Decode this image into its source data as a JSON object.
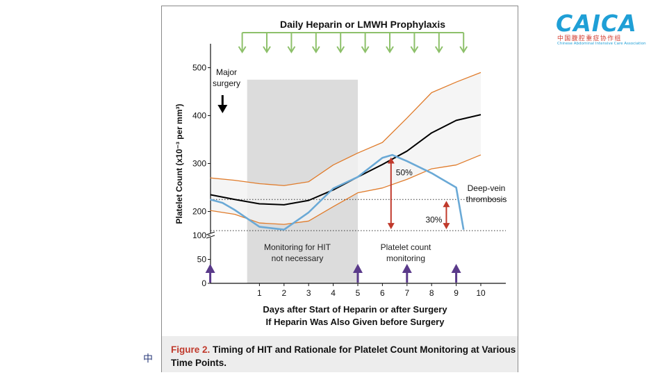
{
  "logo": {
    "text": "CAICA",
    "chinese": "中国腹腔重症协作组",
    "english": "Chinese Abdominal Intensive Care Association"
  },
  "side_glyph": "中",
  "caption": {
    "figure_label": "Figure 2.",
    "text": " Timing of HIT and Rationale for Platelet Count Monitoring at Various Time Points."
  },
  "chart_data": {
    "type": "line",
    "title": "Daily Heparin or LMWH Prophylaxis",
    "xlabel": "Days after Start of Heparin or after Surgery",
    "xlabel_line2": "If Heparin Was Also Given before Surgery",
    "ylabel": "Platelet Count (x10⁻³ per mm³)",
    "xlim": [
      -1.5,
      10.9
    ],
    "ylim": [
      0,
      500
    ],
    "y_axis_break": [
      100,
      150
    ],
    "x_ticks": [
      1,
      2,
      3,
      4,
      5,
      6,
      7,
      8,
      9,
      10
    ],
    "y_ticks": [
      0,
      50,
      100,
      200,
      300,
      400,
      500
    ],
    "shaded_region": {
      "x_start": 0.5,
      "x_end": 5,
      "y_top": 475,
      "color": "#dcdcdc"
    },
    "reference_lines": [
      {
        "y": 225,
        "style": "dotted"
      },
      {
        "y": 160,
        "style": "dotted"
      }
    ],
    "series": [
      {
        "name": "",
        "color": "#000000",
        "x": [
          -1,
          0,
          1,
          2,
          3,
          4,
          5,
          6,
          7,
          8,
          9,
          10
        ],
        "y": [
          235,
          225,
          216,
          214,
          223,
          245,
          272,
          298,
          326,
          364,
          390,
          402
        ]
      },
      {
        "name": "",
        "color": "#e07b2a",
        "x": [
          -1,
          0,
          1,
          2,
          3,
          4,
          5,
          6,
          7,
          8,
          9,
          10
        ],
        "y": [
          270,
          265,
          258,
          254,
          262,
          297,
          322,
          344,
          395,
          448,
          470,
          490
        ]
      },
      {
        "name": "",
        "color": "#e07b2a",
        "x": [
          -1,
          0,
          1,
          2,
          3,
          4,
          5,
          6,
          7,
          8,
          9,
          10
        ],
        "y": [
          202,
          194,
          176,
          173,
          180,
          210,
          239,
          249,
          267,
          289,
          297,
          318
        ]
      },
      {
        "name": "",
        "color": "#6aa9d6",
        "x": [
          -1,
          -0.5,
          0,
          1,
          2,
          3,
          4,
          5,
          6,
          6.4,
          7,
          8,
          9,
          9.3
        ],
        "y": [
          225,
          218,
          203,
          168,
          162,
          198,
          248,
          272,
          312,
          318,
          305,
          280,
          250,
          162
        ]
      }
    ],
    "heparin_arrows_x": [
      0.3,
      1.3,
      2.3,
      3.3,
      4.3,
      5.3,
      6.3,
      7.3,
      8.3,
      9.3
    ],
    "monitoring_arrows_x": [
      -1,
      5,
      7,
      9
    ],
    "drop_arrows": [
      {
        "x": 6.35,
        "y_top": 316,
        "y_bottom": 160,
        "label": "50%"
      },
      {
        "x": 8.6,
        "y_top": 225,
        "y_bottom": 160,
        "label": "30%"
      }
    ],
    "annotations": {
      "major_surgery": [
        "Major",
        "surgery"
      ],
      "no_monitoring": [
        "Monitoring for HIT",
        "not necessary"
      ],
      "monitoring": [
        "Platelet count",
        "monitoring"
      ],
      "dvt": [
        "Deep-vein",
        "thrombosis"
      ]
    },
    "colors": {
      "heparin_arrow": "#8dc06a",
      "monitoring_arrow": "#5a3a8a",
      "drop_arrow": "#c0392b",
      "surgery_arrow": "#000000"
    }
  }
}
